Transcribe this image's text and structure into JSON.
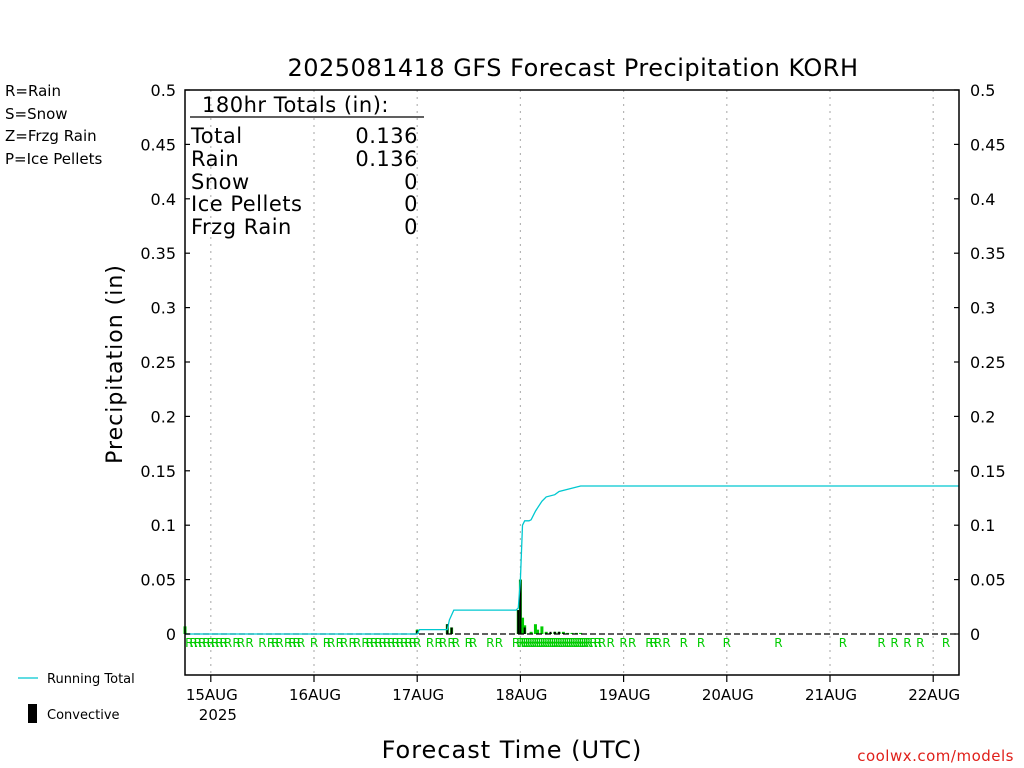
{
  "chart_data": {
    "type": "bar",
    "title": "2025081418 GFS Forecast Precipitation KORH",
    "ylabel": "Precipitation (in)",
    "xlabel": "Forecast Time (UTC)",
    "ylim": [
      0,
      0.5
    ],
    "yticks": [
      "0",
      "0.05",
      "0.1",
      "0.15",
      "0.2",
      "0.25",
      "0.3",
      "0.35",
      "0.4",
      "0.45",
      "0.5"
    ],
    "x_start_hour": 18,
    "x_end_hour": 198,
    "x_unit": "hours from 14AUG 00Z",
    "xticks": [
      {
        "hour": 24,
        "label": "15AUG",
        "sub": "2025"
      },
      {
        "hour": 48,
        "label": "16AUG",
        "sub": ""
      },
      {
        "hour": 72,
        "label": "17AUG",
        "sub": ""
      },
      {
        "hour": 96,
        "label": "18AUG",
        "sub": ""
      },
      {
        "hour": 120,
        "label": "19AUG",
        "sub": ""
      },
      {
        "hour": 144,
        "label": "20AUG",
        "sub": ""
      },
      {
        "hour": 168,
        "label": "21AUG",
        "sub": ""
      },
      {
        "hour": 192,
        "label": "22AUG",
        "sub": ""
      }
    ],
    "grid": true,
    "series": [
      {
        "name": "Running Total",
        "type": "line",
        "color": "#00c8d0",
        "x": [
          18,
          72,
          72.5,
          79,
          79.5,
          80.5,
          95,
          95.5,
          96,
          96.5,
          97,
          98,
          98.5,
          99.5,
          100,
          101,
          102,
          104,
          105,
          110,
          114,
          198
        ],
        "y": [
          0.0,
          0.0,
          0.004,
          0.004,
          0.013,
          0.022,
          0.022,
          0.024,
          0.05,
          0.1,
          0.104,
          0.104,
          0.105,
          0.113,
          0.116,
          0.122,
          0.126,
          0.128,
          0.131,
          0.136,
          0.136,
          0.136
        ]
      },
      {
        "name": "Rain",
        "type": "bar",
        "color": "#00cc00",
        "x": [
          18,
          72,
          79,
          80,
          95.5,
          96,
          96.5,
          97,
          98.5,
          99.5,
          100,
          101,
          102,
          103,
          104,
          105,
          106,
          107,
          108,
          109,
          110
        ],
        "values": [
          0.007,
          0.004,
          0.009,
          0.006,
          0.022,
          0.05,
          0.015,
          0.008,
          0.002,
          0.009,
          0.004,
          0.007,
          0.002,
          0.001,
          0.002,
          0.002,
          0.002,
          0.001,
          0.001,
          0.001,
          0.001
        ]
      },
      {
        "name": "Convective",
        "type": "bar",
        "color": "#000000",
        "x": [
          72,
          79,
          80,
          95.5,
          96,
          97,
          102,
          103,
          104,
          105,
          106
        ],
        "values": [
          0.003,
          0.009,
          0.006,
          0.022,
          0.05,
          0.006,
          0.001,
          0.002,
          0.002,
          0.002,
          0.001
        ]
      }
    ],
    "ptype_marks": {
      "letter": "R",
      "hours": [
        19,
        20,
        21,
        22,
        23,
        24,
        25,
        26,
        27,
        28,
        30,
        31,
        33,
        36,
        38,
        39,
        40,
        42,
        43,
        44,
        45,
        48,
        51,
        52,
        54,
        55,
        57,
        58,
        60,
        61,
        62,
        63,
        64,
        65,
        66,
        67,
        68,
        69,
        70,
        71,
        72,
        75,
        77,
        78,
        80,
        81,
        84,
        85,
        89,
        91,
        95,
        96,
        96.5,
        97,
        97.5,
        98,
        98.5,
        99,
        99.5,
        100,
        100.5,
        101,
        101.5,
        102,
        102.5,
        103,
        103.5,
        104,
        104.5,
        105,
        105.5,
        106,
        106.5,
        107,
        107.5,
        108,
        108.5,
        109,
        109.5,
        110,
        110.5,
        111,
        111.5,
        112,
        113,
        114,
        115,
        117,
        120,
        122,
        126,
        127,
        128,
        130,
        134,
        138,
        144,
        156,
        171,
        180,
        183,
        186,
        189,
        195
      ]
    },
    "totals_box": {
      "heading": "180hr Totals (in):",
      "rows": [
        {
          "label": "Total",
          "value": "0.136"
        },
        {
          "label": "Rain",
          "value": "0.136"
        },
        {
          "label": "Snow",
          "value": "0"
        },
        {
          "label": "Ice Pellets",
          "value": "0"
        },
        {
          "label": "Frzg Rain",
          "value": "0"
        }
      ]
    },
    "ptype_legend": [
      {
        "text": "R=Rain",
        "color": "#00cc00"
      },
      {
        "text": "S=Snow",
        "color": "#3355ff"
      },
      {
        "text": "Z=Frzg Rain",
        "color": "#ff8c1a"
      },
      {
        "text": "P=Ice Pellets",
        "color": "#ff1a9c"
      }
    ],
    "series_legend": [
      {
        "text": "Running Total",
        "kind": "line",
        "color": "#00c8d0"
      },
      {
        "text": "Convective",
        "kind": "bar",
        "color": "#000000"
      }
    ],
    "credit": "coolwx.com/models"
  }
}
